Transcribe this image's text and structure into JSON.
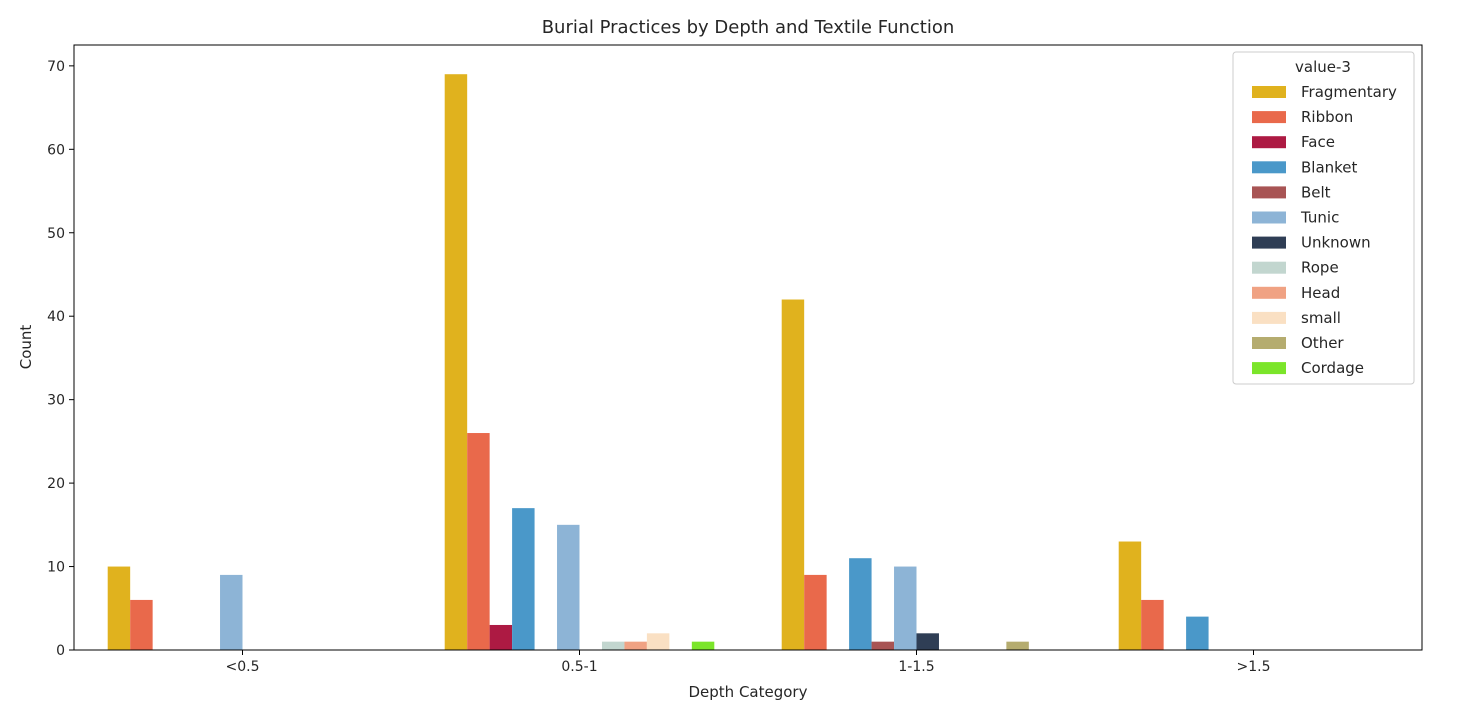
{
  "chart_data": {
    "type": "bar",
    "title": "Burial Practices by Depth and Textile Function",
    "xlabel": "Depth Category",
    "ylabel": "Count",
    "ylim": [
      0,
      72.5
    ],
    "yticks": [
      0,
      10,
      20,
      30,
      40,
      50,
      60,
      70
    ],
    "categories": [
      "<0.5",
      "0.5-1",
      "1-1.5",
      ">1.5"
    ],
    "legend_title": "value-3",
    "legend_position": "top-right",
    "grid": false,
    "series": [
      {
        "name": "Fragmentary",
        "color": "#e0b21e",
        "values": [
          10,
          69,
          42,
          13
        ]
      },
      {
        "name": "Ribbon",
        "color": "#e9694b",
        "values": [
          6,
          26,
          9,
          6
        ]
      },
      {
        "name": "Face",
        "color": "#ad1a43",
        "values": [
          0,
          3,
          0,
          0
        ]
      },
      {
        "name": "Blanket",
        "color": "#4a98c9",
        "values": [
          0,
          17,
          11,
          4
        ]
      },
      {
        "name": "Belt",
        "color": "#a85454",
        "values": [
          0,
          0,
          1,
          0
        ]
      },
      {
        "name": "Tunic",
        "color": "#8db4d6",
        "values": [
          9,
          15,
          10,
          0
        ]
      },
      {
        "name": "Unknown",
        "color": "#2f3e55",
        "values": [
          0,
          0,
          2,
          0
        ]
      },
      {
        "name": "Rope",
        "color": "#c2d6cf",
        "values": [
          0,
          1,
          0,
          0
        ]
      },
      {
        "name": "Head",
        "color": "#f0a283",
        "values": [
          0,
          1,
          0,
          0
        ]
      },
      {
        "name": "small",
        "color": "#fae0c3",
        "values": [
          0,
          2,
          0,
          0
        ]
      },
      {
        "name": "Other",
        "color": "#b5ac6f",
        "values": [
          0,
          0,
          1,
          0
        ]
      },
      {
        "name": "Cordage",
        "color": "#7be52a",
        "values": [
          0,
          1,
          0,
          0
        ]
      }
    ]
  }
}
